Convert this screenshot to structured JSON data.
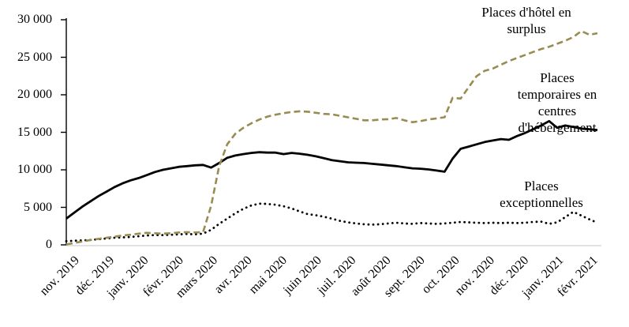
{
  "chart_data": {
    "type": "line",
    "title": "",
    "grid": "off",
    "legend_position": "labels-on-chart",
    "y_axis": {
      "min": 0,
      "max": 30000,
      "tick_step": 5000,
      "tick_labels": [
        "30 000",
        "25 000",
        "20 000",
        "15 000",
        "10 000",
        "5 000",
        "0"
      ]
    },
    "x_axis": {
      "tick_labels": [
        "nov. 2019",
        "déc. 2019",
        "janv. 2020",
        "févr. 2020",
        "mars 2020",
        "avr. 2020",
        "mai 2020",
        "juin 2020",
        "juil. 2020",
        "août 2020",
        "sept. 2020",
        "oct. 2020",
        "nov. 2020",
        "déc. 2020",
        "janv. 2021",
        "févr. 2021"
      ]
    },
    "series": [
      {
        "name": "Places temporaires en centres d'hébergement",
        "line_style": "solid",
        "color": "#000000",
        "values": [
          3500,
          4300,
          5100,
          5800,
          6500,
          7100,
          7700,
          8200,
          8600,
          8900,
          9300,
          9700,
          10000,
          10200,
          10400,
          10500,
          10600,
          10650,
          10300,
          10900,
          11600,
          11900,
          12100,
          12250,
          12350,
          12300,
          12300,
          12100,
          12250,
          12150,
          12000,
          11800,
          11550,
          11300,
          11150,
          11000,
          10950,
          10900,
          10800,
          10700,
          10600,
          10500,
          10350,
          10200,
          10150,
          10050,
          9900,
          9750,
          11500,
          12800,
          13100,
          13400,
          13700,
          13900,
          14100,
          14000,
          14500,
          14900,
          15400,
          15900,
          16500,
          15600,
          15900,
          15700,
          15500,
          15400,
          15300
        ]
      },
      {
        "name": "Places d'hôtel en surplus",
        "line_style": "dashed",
        "color": "#998c52",
        "values": [
          50,
          250,
          450,
          650,
          800,
          950,
          1100,
          1250,
          1350,
          1500,
          1600,
          1550,
          1500,
          1550,
          1650,
          1700,
          1650,
          1700,
          5200,
          10500,
          13400,
          14800,
          15600,
          16200,
          16700,
          17100,
          17350,
          17550,
          17700,
          17800,
          17750,
          17600,
          17450,
          17400,
          17200,
          17000,
          16800,
          16600,
          16600,
          16700,
          16750,
          16900,
          16600,
          16350,
          16500,
          16700,
          16850,
          17000,
          19600,
          19500,
          21000,
          22500,
          23200,
          23500,
          24000,
          24500,
          24900,
          25300,
          25700,
          26100,
          26400,
          26800,
          27200,
          27700,
          28500,
          28000,
          28200
        ]
      },
      {
        "name": "Places exceptionnelles",
        "line_style": "dotted",
        "color": "#000000",
        "values": [
          500,
          550,
          600,
          650,
          750,
          850,
          950,
          1000,
          1050,
          1150,
          1250,
          1300,
          1300,
          1350,
          1400,
          1450,
          1400,
          1500,
          2000,
          2800,
          3500,
          4200,
          4800,
          5250,
          5500,
          5450,
          5350,
          5150,
          4850,
          4450,
          4100,
          3950,
          3750,
          3500,
          3200,
          3000,
          2850,
          2750,
          2700,
          2750,
          2850,
          2950,
          2850,
          2800,
          2900,
          2850,
          2800,
          2850,
          2950,
          3050,
          3000,
          2950,
          2900,
          2950,
          2900,
          2950,
          2900,
          2950,
          3050,
          3100,
          2800,
          3000,
          3700,
          4400,
          3900,
          3400,
          2950
        ]
      }
    ],
    "annotations": [
      {
        "id": "hotel",
        "text": "Places d'hôtel en\nsurplus"
      },
      {
        "id": "temporaires",
        "text": "Places\ntemporaires en\ncentres\nd'hébergement"
      },
      {
        "id": "exceptionnelles",
        "text": "Places\nexceptionnelles"
      }
    ],
    "axis_colors": {
      "y_axis": "#000000",
      "x_axis": "#d9d9d9"
    }
  }
}
